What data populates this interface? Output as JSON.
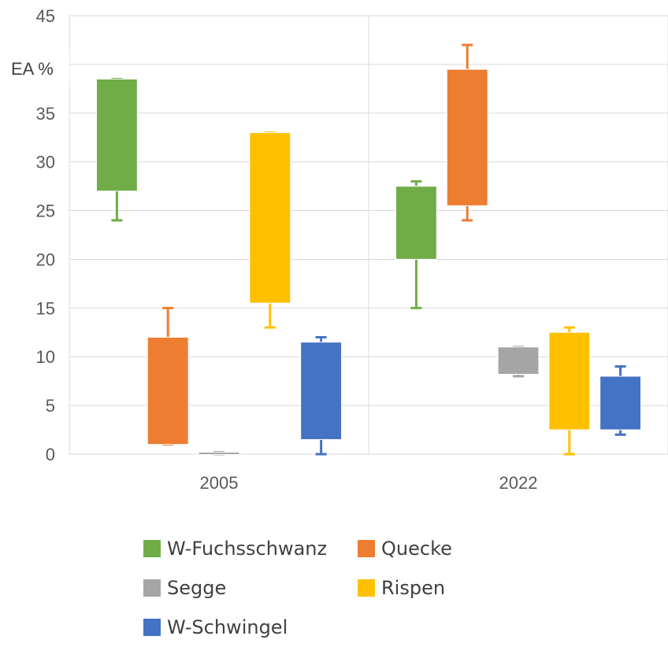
{
  "chart_data": {
    "type": "box",
    "title": "",
    "xlabel": "",
    "ylabel": "EA %",
    "ylim": [
      0,
      45
    ],
    "yticks": [
      0,
      5,
      10,
      15,
      20,
      25,
      30,
      35,
      40,
      45
    ],
    "grid": true,
    "legend_position": "bottom",
    "categories": [
      "2005",
      "2022"
    ],
    "series": [
      {
        "name": "W-Fuchsschwanz",
        "color": "#70ad47",
        "boxes": [
          {
            "category": "2005",
            "min": 24,
            "q1": 27,
            "q3": 38.5,
            "max": 38.5
          },
          {
            "category": "2022",
            "min": 15,
            "q1": 20,
            "q3": 27.5,
            "max": 28
          }
        ]
      },
      {
        "name": "Quecke",
        "color": "#ed7d31",
        "boxes": [
          {
            "category": "2005",
            "min": 1,
            "q1": 1,
            "q3": 12,
            "max": 15
          },
          {
            "category": "2022",
            "min": 24,
            "q1": 25.5,
            "q3": 39.5,
            "max": 42
          }
        ]
      },
      {
        "name": "Segge",
        "color": "#a5a5a5",
        "boxes": [
          {
            "category": "2005",
            "min": 0,
            "q1": 0,
            "q3": 0.2,
            "max": 0.2
          },
          {
            "category": "2022",
            "min": 8,
            "q1": 8.2,
            "q3": 11,
            "max": 11
          }
        ]
      },
      {
        "name": "Rispen",
        "color": "#ffc000",
        "boxes": [
          {
            "category": "2005",
            "min": 13,
            "q1": 15.5,
            "q3": 33,
            "max": 33
          },
          {
            "category": "2022",
            "min": 0,
            "q1": 2.5,
            "q3": 12.5,
            "max": 13
          }
        ]
      },
      {
        "name": "W-Schwingel",
        "color": "#4472c4",
        "boxes": [
          {
            "category": "2005",
            "min": 0,
            "q1": 1.5,
            "q3": 11.5,
            "max": 12
          },
          {
            "category": "2022",
            "min": 2,
            "q1": 2.5,
            "q3": 8,
            "max": 9
          }
        ]
      }
    ]
  }
}
